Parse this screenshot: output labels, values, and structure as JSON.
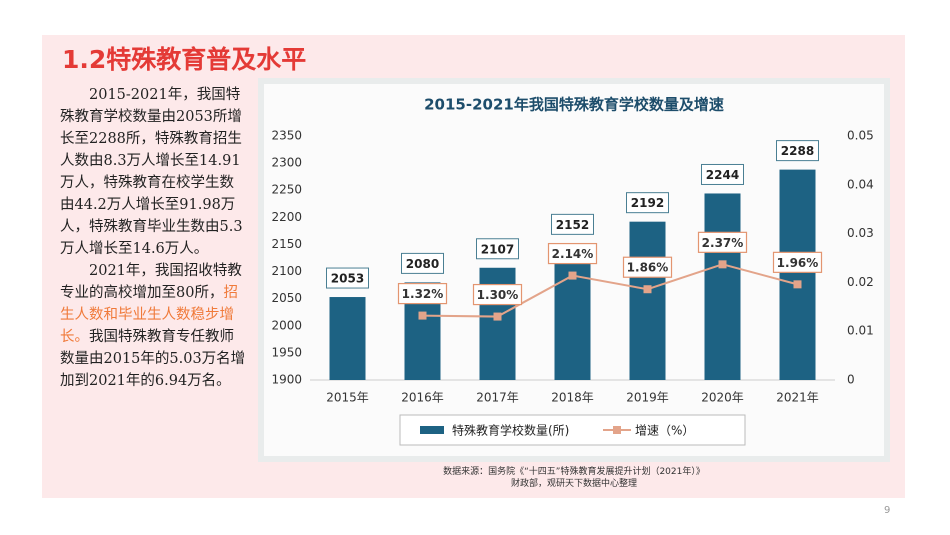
{
  "header": {
    "title": "1.2特殊教育普及水平"
  },
  "body": {
    "paragraph_1": "2015-2021年，我国特殊教育学校数量由2053所增长至2288所，特殊教育招生人数由8.3万人增长至14.91万人，特殊教育在校学生数由44.2万人增长至91.98万人，特殊教育毕业生数由5.3万人增长至14.6万人。",
    "paragraph_2": [
      "2021年，我国招收特教专业的高校增加至80所，",
      "招生人数和毕业生人数稳步增长。",
      "我国特殊教育专任教师数量由2015年的5.03万名增加到2021年的6.94万名。"
    ]
  },
  "chart_data": {
    "type": "bar",
    "title": "2015-2021年我国特殊教育学校数量及增速",
    "categories": [
      "2015年",
      "2016年",
      "2017年",
      "2018年",
      "2019年",
      "2020年",
      "2021年"
    ],
    "series": [
      {
        "name": "特殊教育学校数量(所)",
        "color": "#1d6283",
        "type": "bar",
        "values": [
          2053,
          2080,
          2107,
          2152,
          2192,
          2244,
          2288
        ]
      },
      {
        "name": "增速（%）",
        "color": "#e3a48a",
        "type": "line",
        "axis": "y2",
        "values": [
          null,
          0.0132,
          0.013,
          0.0214,
          0.0186,
          0.0237,
          0.0196
        ],
        "value_labels": [
          null,
          "1.32%",
          "1.30%",
          "2.14%",
          "1.86%",
          "2.37%",
          "1.96%"
        ]
      }
    ],
    "ylim": [
      1900,
      2350
    ],
    "yticks": [
      1900,
      1950,
      2000,
      2050,
      2100,
      2150,
      2200,
      2250,
      2300,
      2350
    ],
    "y2lim": [
      0,
      0.05
    ],
    "y2ticks": [
      0,
      0.01,
      0.02,
      0.03,
      0.04,
      0.05
    ],
    "grid": false,
    "legend": "bottom"
  },
  "source": [
    "数据来源：国务院《“十四五”特殊教育发展提升计划（2021年）》",
    "财政部，观研天下数据中心整理"
  ],
  "page_number": "9"
}
